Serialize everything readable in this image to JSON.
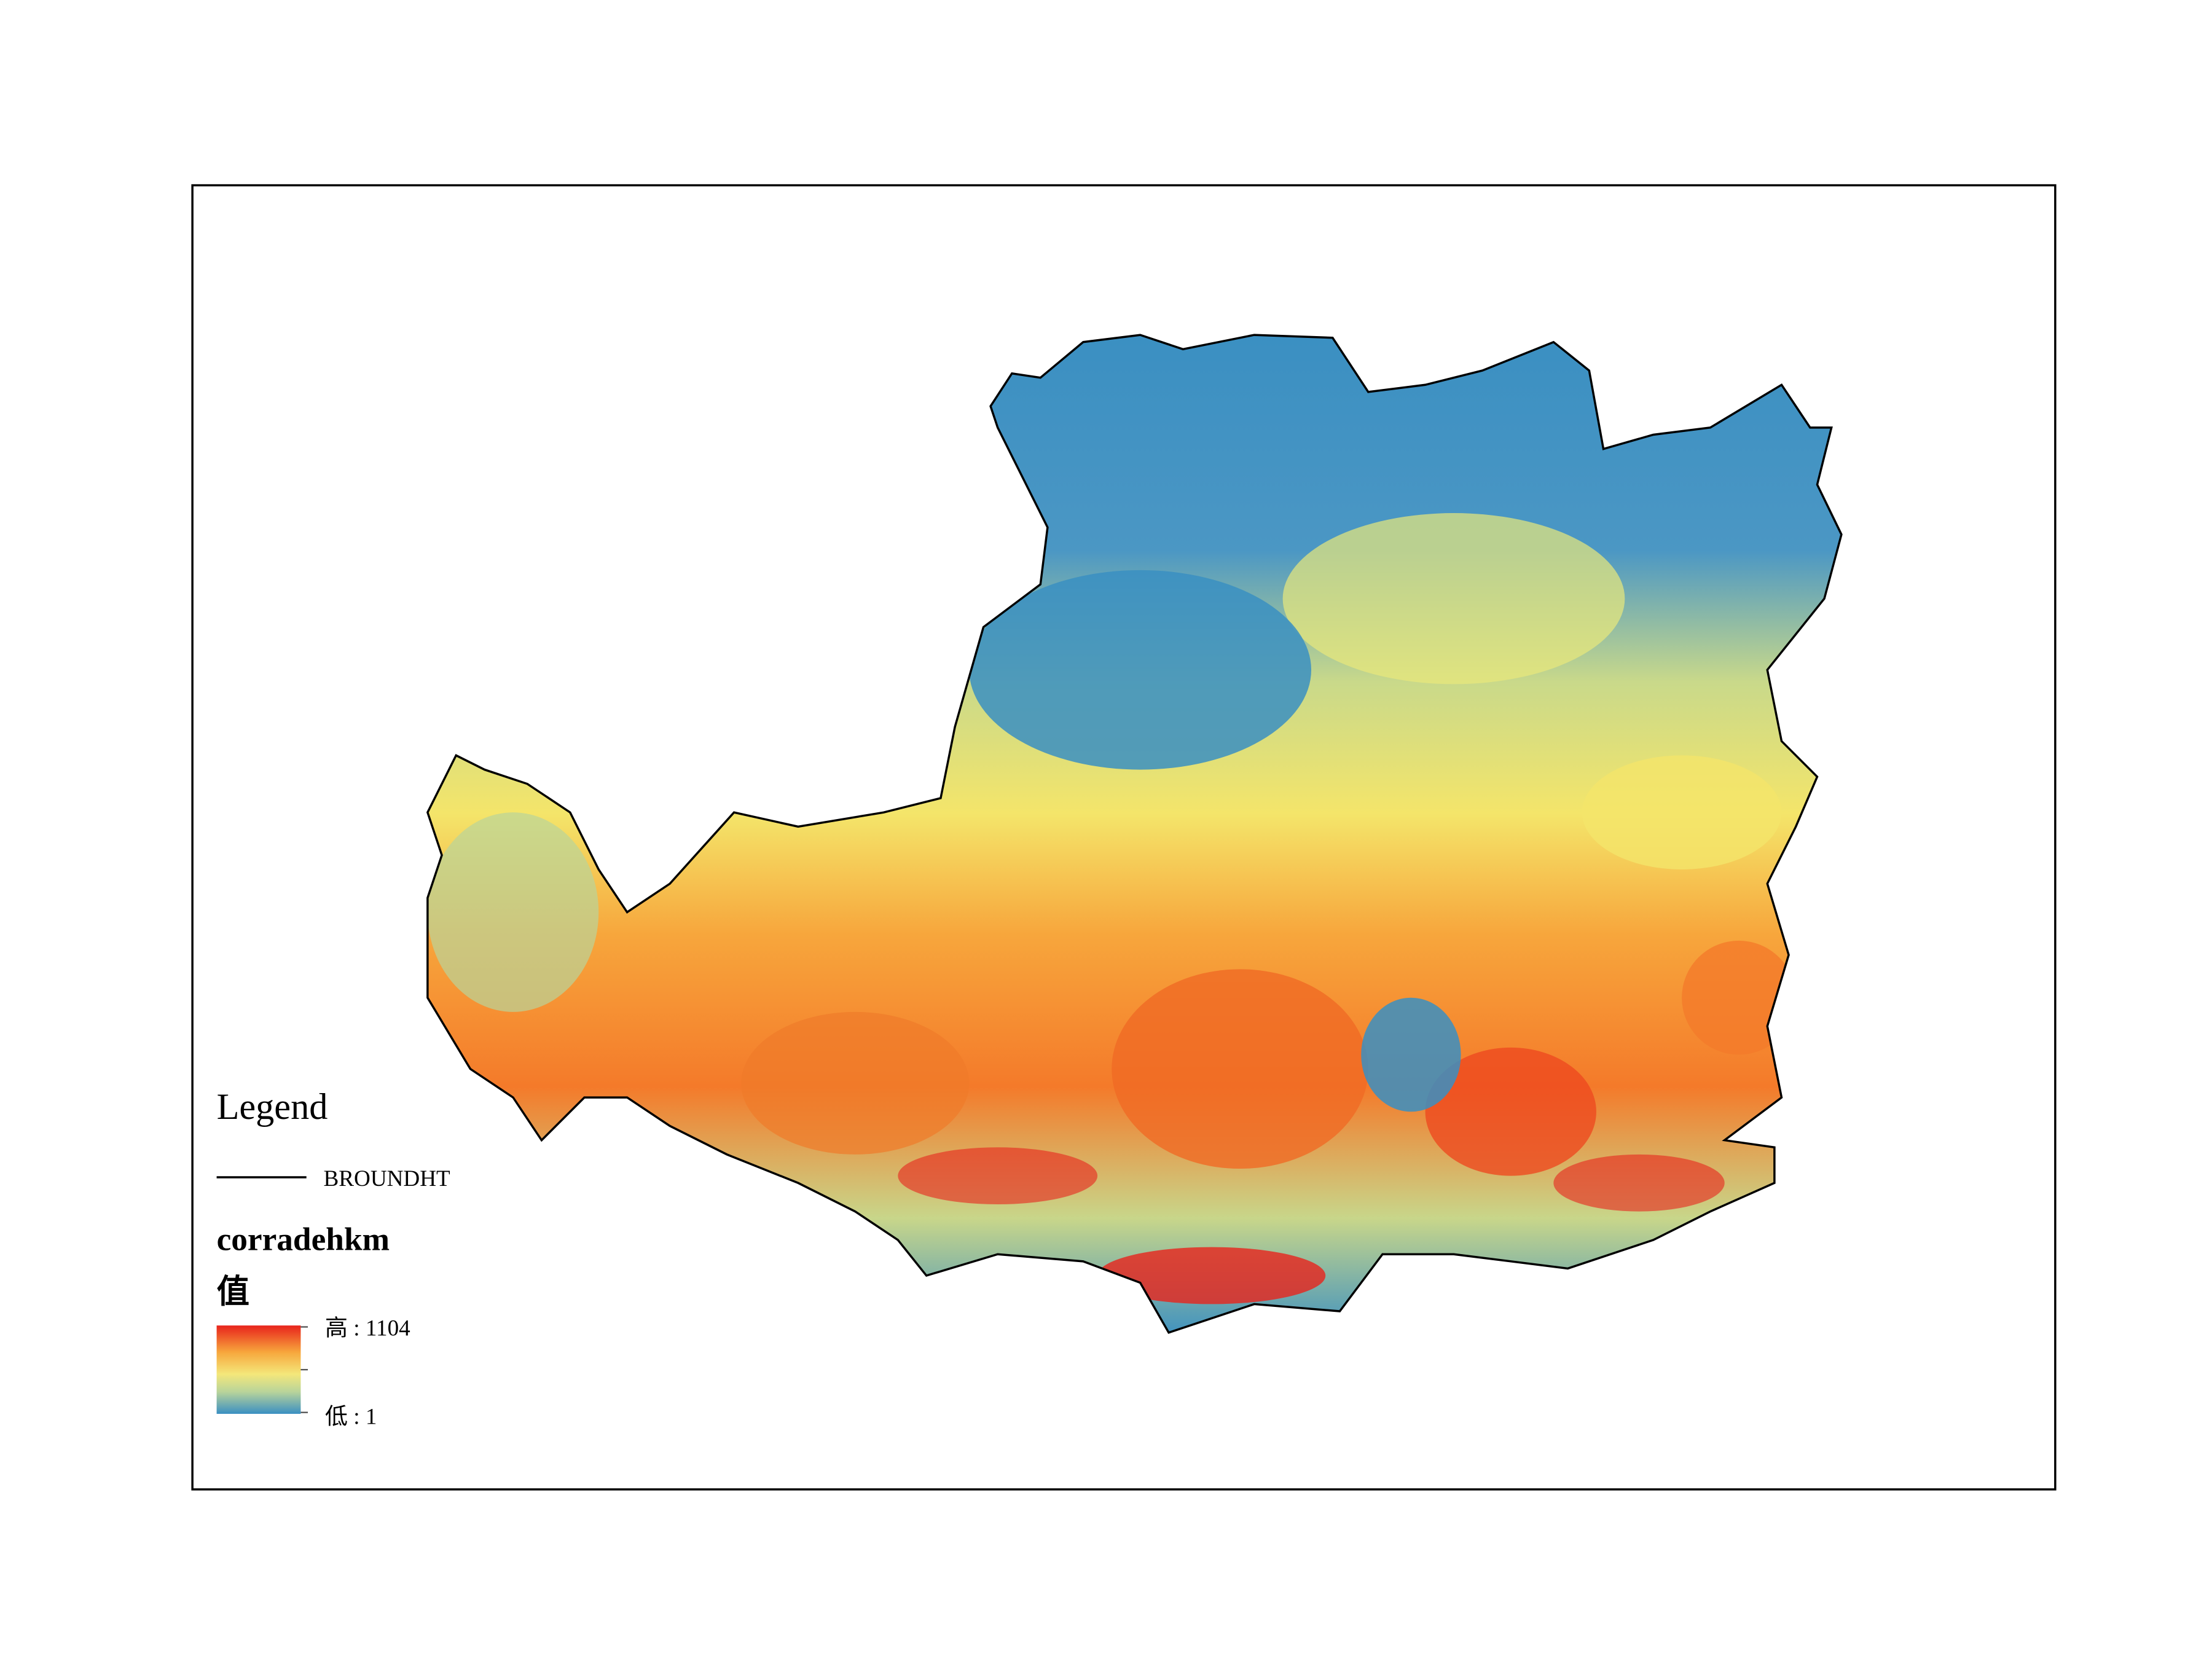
{
  "legend": {
    "title": "Legend",
    "layer_label": "BROUNDHT",
    "raster_name": "corradehkm",
    "field_label": "值",
    "high_label": "高 : 1104",
    "low_label": "低 : 1"
  }
}
